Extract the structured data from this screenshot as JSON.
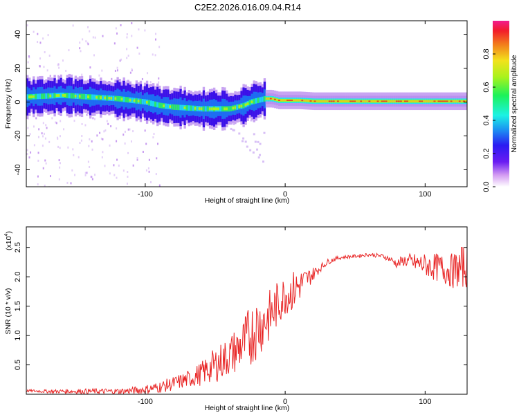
{
  "chart_data": [
    {
      "type": "heatmap",
      "title": "C2E2.2026.016.09.04.R14",
      "xlabel": "Height of straight line (km)",
      "ylabel": "Frequency (Hz)",
      "xlim": [
        -185,
        130
      ],
      "ylim": [
        -50,
        48
      ],
      "xticks": [
        -100,
        0,
        100
      ],
      "xtick_labels": [
        "-100",
        "0",
        "100"
      ],
      "yticks": [
        -40,
        -20,
        0,
        20,
        40
      ],
      "ytick_labels": [
        "-40",
        "-20",
        "0",
        "20",
        "40"
      ],
      "colorbar": {
        "label": "Normalized spectral amplitude",
        "range": [
          0,
          1
        ],
        "ticks": [
          0.0,
          0.2,
          0.4,
          0.6,
          0.8
        ],
        "tick_labels": [
          "0.0",
          "0.2",
          "0.4",
          "0.6",
          "0.8"
        ]
      },
      "ridge": {
        "x": [
          -185,
          -160,
          -140,
          -120,
          -100,
          -90,
          -80,
          -70,
          -60,
          -50,
          -40,
          -35,
          -30,
          -25,
          -20,
          -15,
          -10,
          -5,
          0,
          10,
          20,
          40,
          60,
          80,
          100,
          130
        ],
        "y": [
          3,
          4,
          3,
          2,
          0,
          -2,
          -3,
          -3.5,
          -4,
          -4,
          -4,
          -3,
          -2,
          0,
          1,
          2,
          2,
          1,
          1,
          1,
          0.5,
          0.5,
          0.5,
          0.5,
          0.5,
          0.5
        ]
      }
    },
    {
      "type": "line",
      "title": "",
      "xlabel": "Height of straight line (km)",
      "ylabel": "SNR (10 * v/v)",
      "y_multiplier_label": "(x10",
      "y_multiplier_exp": "4",
      "xlim": [
        -185,
        130
      ],
      "ylim": [
        0,
        2.85
      ],
      "xticks": [
        -100,
        0,
        100
      ],
      "xtick_labels": [
        "-100",
        "0",
        "100"
      ],
      "yticks": [
        0.5,
        1.0,
        1.5,
        2.0,
        2.5
      ],
      "ytick_labels": [
        "0.5",
        "1.0",
        "1.5",
        "2.0",
        "2.5"
      ],
      "series": [
        {
          "name": "SNR",
          "color": "#e82424",
          "x": [
            -185,
            -170,
            -150,
            -130,
            -120,
            -110,
            -100,
            -90,
            -80,
            -70,
            -60,
            -50,
            -40,
            -30,
            -25,
            -20,
            -15,
            -10,
            -5,
            0,
            5,
            10,
            15,
            20,
            25,
            30,
            35,
            40,
            50,
            60,
            70,
            75,
            80,
            85,
            90,
            100,
            110,
            120,
            130
          ],
          "mean": [
            0.06,
            0.05,
            0.05,
            0.05,
            0.05,
            0.06,
            0.08,
            0.12,
            0.18,
            0.25,
            0.35,
            0.5,
            0.65,
            0.85,
            1.0,
            1.15,
            1.25,
            1.35,
            1.55,
            1.7,
            1.75,
            1.85,
            1.95,
            2.05,
            2.15,
            2.25,
            2.3,
            2.33,
            2.35,
            2.38,
            2.35,
            2.3,
            2.22,
            2.28,
            2.25,
            2.2,
            2.15,
            2.1,
            2.2
          ],
          "spread": [
            0.02,
            0.03,
            0.04,
            0.05,
            0.05,
            0.06,
            0.08,
            0.1,
            0.12,
            0.15,
            0.2,
            0.3,
            0.35,
            0.45,
            0.55,
            0.55,
            0.5,
            0.45,
            0.4,
            0.35,
            0.35,
            0.3,
            0.2,
            0.12,
            0.07,
            0.05,
            0.04,
            0.03,
            0.03,
            0.03,
            0.04,
            0.05,
            0.08,
            0.1,
            0.15,
            0.2,
            0.25,
            0.3,
            0.4
          ]
        }
      ]
    }
  ]
}
